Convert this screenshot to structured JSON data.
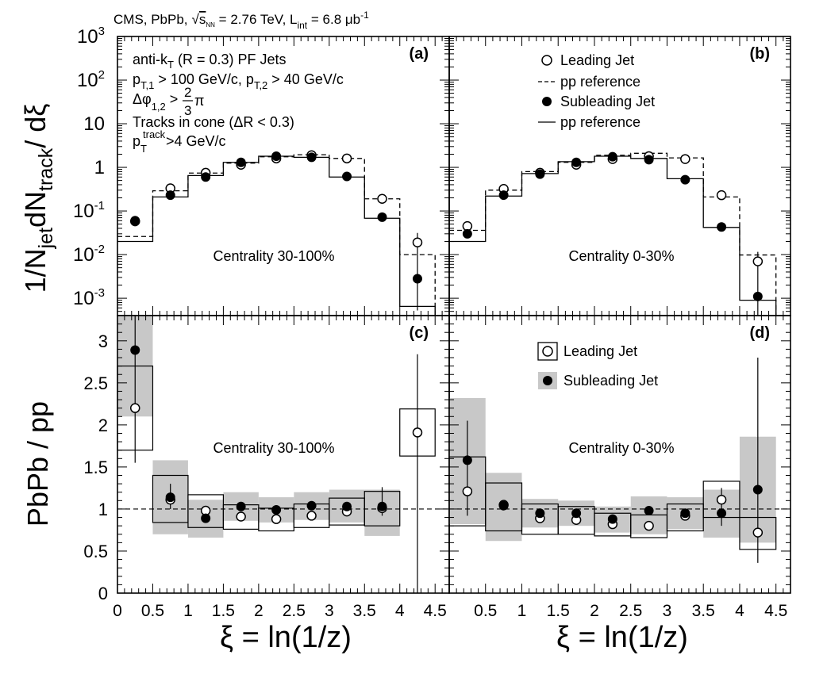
{
  "header": {
    "experiment": "CMS, PbPb,",
    "sqrt_s": "s",
    "sqrt_sub": "NN",
    "energy": " = 2.76 TeV, L",
    "lumi_sub": "int",
    "lumi_value": " = 6.8 μb",
    "lumi_sup": "-1"
  },
  "top_ylabel": {
    "a": "1/N",
    "b": "jet",
    "c": "dN",
    "d": "track",
    "e": "/ dξ"
  },
  "bottom_ylabel": "PbPb / pp",
  "xlabel": "ξ = ln(1/z)",
  "colors": {
    "ink": "#000000",
    "band": "#c8c8c8",
    "open": "#ffffff"
  },
  "chart_data": [
    {
      "panel": "(a)",
      "type": "scatter",
      "scale": "log",
      "centrality": "Centrality 30-100%",
      "ylim": [
        0.0004,
        1000
      ],
      "xlim": [
        0,
        4.7
      ],
      "ytick_labels": [
        {
          "v": 1000,
          "b": "10",
          "s": "3"
        },
        {
          "v": 100,
          "b": "10",
          "s": "2"
        },
        {
          "v": 10,
          "b": "10",
          "s": ""
        },
        {
          "v": 1,
          "b": "1",
          "s": ""
        },
        {
          "v": 0.1,
          "b": "10",
          "s": "-1"
        },
        {
          "v": 0.01,
          "b": "10",
          "s": "-2"
        },
        {
          "v": 0.001,
          "b": "10",
          "s": "-3"
        }
      ],
      "info": [
        {
          "p": [
            "anti-k",
            "T",
            " (R = 0.3) PF Jets"
          ]
        },
        {
          "p": [
            "p",
            "T,1",
            " > 100 GeV/c, p",
            "T,2",
            " > 40 GeV/c"
          ]
        },
        {
          "p": [
            "Δφ",
            "1,2",
            " > ",
            "2",
            "3",
            "π"
          ]
        },
        {
          "p": [
            "Tracks in cone (ΔR < 0.3)"
          ]
        },
        {
          "p": [
            "p",
            "T",
            "track",
            ">4 GeV/c"
          ]
        }
      ],
      "bin_edges": [
        0,
        0.5,
        1,
        1.5,
        2,
        2.5,
        3,
        3.5,
        4,
        4.5
      ],
      "x": [
        0.25,
        0.75,
        1.25,
        1.75,
        2.25,
        2.75,
        3.25,
        3.75,
        4.25
      ],
      "series": [
        {
          "name": "Leading Jet",
          "marker": "open",
          "values": [
            0.058,
            0.33,
            0.75,
            1.15,
            1.6,
            1.9,
            1.6,
            0.19,
            0.019
          ]
        },
        {
          "name": "pp reference",
          "style": "dashed",
          "values": [
            0.026,
            0.29,
            0.74,
            1.25,
            1.75,
            1.95,
            1.6,
            0.19,
            0.01
          ]
        },
        {
          "name": "Subleading Jet",
          "marker": "filled",
          "values": [
            0.06,
            0.23,
            0.6,
            1.3,
            1.8,
            1.7,
            0.62,
            0.072,
            0.0028
          ]
        },
        {
          "name": "pp reference",
          "style": "solid",
          "values": [
            0.02,
            0.21,
            0.65,
            1.3,
            1.8,
            1.7,
            0.6,
            0.068,
            0.00065
          ]
        }
      ]
    },
    {
      "panel": "(b)",
      "type": "scatter",
      "scale": "log",
      "centrality": "Centrality 0-30%",
      "ylim": [
        0.0004,
        1000
      ],
      "xlim": [
        0,
        4.7
      ],
      "legend": [
        {
          "label": "Leading Jet",
          "kind": "open"
        },
        {
          "label": "pp reference",
          "kind": "dashed"
        },
        {
          "label": "Subleading Jet",
          "kind": "filled"
        },
        {
          "label": "pp reference",
          "kind": "solid"
        }
      ],
      "bin_edges": [
        0,
        0.5,
        1,
        1.5,
        2,
        2.5,
        3,
        3.5,
        4,
        4.5
      ],
      "x": [
        0.25,
        0.75,
        1.25,
        1.75,
        2.25,
        2.75,
        3.25,
        3.75,
        4.25
      ],
      "series": [
        {
          "name": "Leading Jet",
          "marker": "open",
          "values": [
            0.045,
            0.32,
            0.75,
            1.15,
            1.55,
            1.8,
            1.55,
            0.23,
            0.007
          ]
        },
        {
          "name": "pp reference",
          "style": "dashed",
          "values": [
            0.036,
            0.3,
            0.8,
            1.3,
            1.9,
            2.1,
            1.65,
            0.21,
            0.0098
          ]
        },
        {
          "name": "Subleading Jet",
          "marker": "filled",
          "values": [
            0.03,
            0.23,
            0.7,
            1.3,
            1.75,
            1.5,
            0.52,
            0.043,
            0.0011
          ]
        },
        {
          "name": "pp reference",
          "style": "solid",
          "values": [
            0.02,
            0.22,
            0.72,
            1.35,
            1.8,
            1.6,
            0.55,
            0.042,
            0.0009
          ]
        }
      ]
    },
    {
      "panel": "(c)",
      "type": "scatter",
      "scale": "linear",
      "centrality": "Centrality 30-100%",
      "ylim": [
        0,
        3.3
      ],
      "xlim": [
        0,
        4.7
      ],
      "yticks": [
        0,
        0.5,
        1,
        1.5,
        2,
        2.5,
        3
      ],
      "ytick_labels": [
        "0",
        "0.5",
        "1",
        "1.5",
        "2",
        "2.5",
        "3"
      ],
      "xtick_labels": [
        "0",
        "0.5",
        "1",
        "1.5",
        "2",
        "2.5",
        "3",
        "3.5",
        "4",
        "4.5"
      ],
      "reference_line": 1,
      "series": [
        {
          "name": "Leading Jet",
          "marker": "open",
          "points": [
            {
              "x": 0.25,
              "y": 2.2,
              "lo": 1.7,
              "hi": 2.7
            },
            {
              "x": 0.75,
              "y": 1.11,
              "lo": 0.84,
              "hi": 1.4
            },
            {
              "x": 1.25,
              "y": 0.98,
              "lo": 0.78,
              "hi": 1.17
            },
            {
              "x": 1.75,
              "y": 0.91,
              "lo": 0.76,
              "hi": 1.05
            },
            {
              "x": 2.25,
              "y": 0.88,
              "lo": 0.74,
              "hi": 1.01
            },
            {
              "x": 2.75,
              "y": 0.92,
              "lo": 0.78,
              "hi": 1.06
            },
            {
              "x": 3.25,
              "y": 0.97,
              "lo": 0.81,
              "hi": 1.13
            },
            {
              "x": 3.75,
              "y": 1.01,
              "lo": 0.8,
              "hi": 1.21
            },
            {
              "x": 4.25,
              "y": 1.91,
              "lo": 1.63,
              "hi": 2.19
            }
          ]
        },
        {
          "name": "Subleading Jet",
          "marker": "filled",
          "points": [
            {
              "x": 0.25,
              "y": 2.89,
              "lo": 2.1,
              "hi": 3.3
            },
            {
              "x": 0.75,
              "y": 1.14,
              "lo": 0.7,
              "hi": 1.58
            },
            {
              "x": 1.25,
              "y": 0.89,
              "lo": 0.66,
              "hi": 1.11
            },
            {
              "x": 1.75,
              "y": 1.03,
              "lo": 0.86,
              "hi": 1.2
            },
            {
              "x": 2.25,
              "y": 0.99,
              "lo": 0.84,
              "hi": 1.14
            },
            {
              "x": 2.75,
              "y": 1.04,
              "lo": 0.87,
              "hi": 1.2
            },
            {
              "x": 3.25,
              "y": 1.03,
              "lo": 0.84,
              "hi": 1.23
            },
            {
              "x": 3.75,
              "y": 1.03,
              "lo": 0.68,
              "hi": 1.23
            }
          ]
        }
      ]
    },
    {
      "panel": "(d)",
      "type": "scatter",
      "scale": "linear",
      "centrality": "Centrality 0-30%",
      "ylim": [
        0,
        3.3
      ],
      "xlim": [
        0,
        4.7
      ],
      "xtick_labels": [
        "0.5",
        "1",
        "1.5",
        "2",
        "2.5",
        "3",
        "3.5",
        "4",
        "4.5"
      ],
      "reference_line": 1,
      "legend": [
        {
          "label": "Leading Jet",
          "kind": "open-box"
        },
        {
          "label": "Subleading Jet",
          "kind": "filled-band"
        }
      ],
      "series": [
        {
          "name": "Leading Jet",
          "marker": "open",
          "points": [
            {
              "x": 0.25,
              "y": 1.21,
              "lo": 0.8,
              "hi": 1.62
            },
            {
              "x": 0.75,
              "y": 1.05,
              "lo": 0.74,
              "hi": 1.31
            },
            {
              "x": 1.25,
              "y": 0.89,
              "lo": 0.7,
              "hi": 1.06
            },
            {
              "x": 1.75,
              "y": 0.87,
              "lo": 0.7,
              "hi": 1.03
            },
            {
              "x": 2.25,
              "y": 0.82,
              "lo": 0.68,
              "hi": 0.95
            },
            {
              "x": 2.75,
              "y": 0.8,
              "lo": 0.66,
              "hi": 0.93
            },
            {
              "x": 3.25,
              "y": 0.92,
              "lo": 0.74,
              "hi": 1.06
            },
            {
              "x": 3.75,
              "y": 1.11,
              "lo": 0.9,
              "hi": 1.33
            },
            {
              "x": 4.25,
              "y": 0.72,
              "lo": 0.52,
              "hi": 0.9
            }
          ]
        },
        {
          "name": "Subleading Jet",
          "marker": "filled",
          "points": [
            {
              "x": 0.25,
              "y": 1.58,
              "lo": 0.82,
              "hi": 2.32
            },
            {
              "x": 0.75,
              "y": 1.04,
              "lo": 0.62,
              "hi": 1.43
            },
            {
              "x": 1.25,
              "y": 0.95,
              "lo": 0.78,
              "hi": 1.12
            },
            {
              "x": 1.75,
              "y": 0.95,
              "lo": 0.8,
              "hi": 1.1
            },
            {
              "x": 2.25,
              "y": 0.88,
              "lo": 0.72,
              "hi": 1.03
            },
            {
              "x": 2.75,
              "y": 0.98,
              "lo": 0.7,
              "hi": 1.15
            },
            {
              "x": 3.25,
              "y": 0.95,
              "lo": 0.76,
              "hi": 1.14
            },
            {
              "x": 3.75,
              "y": 0.95,
              "lo": 0.66,
              "hi": 1.23
            },
            {
              "x": 4.25,
              "y": 1.23,
              "lo": 0.6,
              "hi": 1.86
            }
          ]
        }
      ]
    }
  ]
}
